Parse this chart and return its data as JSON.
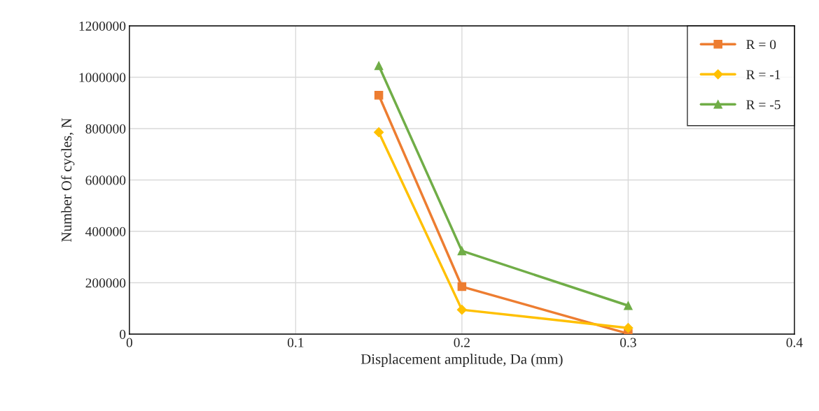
{
  "chart_data": {
    "type": "line",
    "xlabel": "Displacement amplitude, Da (mm)",
    "ylabel": "Number Of cycles, N",
    "x": [
      0.15,
      0.2,
      0.3
    ],
    "series": [
      {
        "name": "R = 0",
        "color": "#ed7d31",
        "marker": "square",
        "values": [
          930000,
          185000,
          2000
        ]
      },
      {
        "name": "R = -1",
        "color": "#ffc000",
        "marker": "diamond",
        "values": [
          786000,
          95000,
          24000
        ]
      },
      {
        "name": "R = -5",
        "color": "#70ad47",
        "marker": "triangle",
        "values": [
          1045000,
          324000,
          111000
        ]
      }
    ],
    "xlim": [
      0,
      0.4
    ],
    "xticks": [
      0,
      0.1,
      0.2,
      0.3,
      0.4
    ],
    "ylim": [
      0,
      1200000
    ],
    "yticks": [
      0,
      200000,
      400000,
      600000,
      800000,
      1000000,
      1200000
    ],
    "grid": true,
    "legend": "top right",
    "line_style": "solid"
  }
}
